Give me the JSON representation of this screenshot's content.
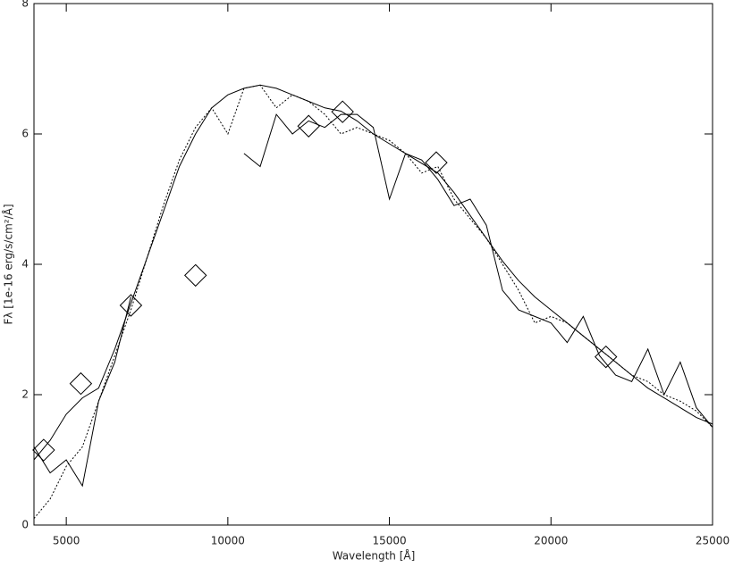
{
  "chart_data": {
    "type": "line",
    "x_label": "Wavelength [Å]",
    "y_label": "Fλ [1e-16 erg/s/cm²/Å]",
    "xlim": [
      4000,
      25000
    ],
    "ylim": [
      0,
      8
    ],
    "xticks": [
      5000,
      10000,
      15000,
      20000,
      25000
    ],
    "yticks": [
      0,
      2,
      4,
      6,
      8
    ],
    "x": [
      4000,
      4500,
      5000,
      5500,
      6000,
      6500,
      7000,
      7500,
      8000,
      8500,
      9000,
      9500,
      10000,
      10500,
      11000,
      11500,
      12000,
      12500,
      13000,
      13500,
      14000,
      14500,
      15000,
      15500,
      16000,
      16500,
      17000,
      17500,
      18000,
      18500,
      19000,
      19500,
      20000,
      20500,
      21000,
      21500,
      22000,
      22500,
      23000,
      23500,
      24000,
      24500,
      25000
    ],
    "series": [
      {
        "color": "#000000",
        "style": "dotted",
        "values": [
          0.1,
          0.4,
          0.9,
          1.2,
          1.9,
          2.6,
          3.3,
          4.1,
          4.9,
          5.6,
          6.1,
          6.4,
          6.0,
          6.7,
          6.75,
          6.4,
          6.6,
          6.5,
          6.3,
          6.0,
          6.1,
          6.0,
          5.9,
          5.7,
          5.4,
          5.5,
          5.0,
          4.7,
          4.4,
          4.0,
          3.6,
          3.1,
          3.2,
          3.1,
          2.9,
          2.7,
          2.5,
          2.3,
          2.2,
          2.0,
          1.9,
          1.75,
          1.5
        ]
      },
      {
        "color": "#000000",
        "style": "solid",
        "values": [
          1.0,
          1.3,
          1.7,
          1.95,
          2.1,
          2.7,
          3.4,
          4.1,
          4.8,
          5.5,
          6.0,
          6.4,
          6.6,
          6.7,
          6.75,
          6.7,
          6.6,
          6.5,
          6.4,
          6.35,
          6.2,
          6.0,
          5.85,
          5.7,
          5.55,
          5.4,
          5.1,
          4.75,
          4.4,
          4.05,
          3.75,
          3.5,
          3.3,
          3.1,
          2.9,
          2.7,
          2.5,
          2.3,
          2.1,
          1.95,
          1.8,
          1.65,
          1.55
        ]
      },
      {
        "color": "#000000",
        "style": "solid",
        "values": [
          1.2,
          0.8,
          1.0,
          0.6,
          1.9,
          2.5,
          3.5,
          null,
          null,
          null,
          null,
          null,
          null,
          5.7,
          5.5,
          6.3,
          6.0,
          6.2,
          6.1,
          6.3,
          6.3,
          6.1,
          5.0,
          5.7,
          5.6,
          5.3,
          4.9,
          5.0,
          4.6,
          3.6,
          3.3,
          3.2,
          3.1,
          2.8,
          3.2,
          2.6,
          2.3,
          2.2,
          2.7,
          2.0,
          2.5,
          1.8,
          1.5
        ]
      }
    ],
    "photometry": {
      "color": "#000000",
      "marker": "diamond",
      "x": [
        4300,
        5450,
        7000,
        9000,
        12500,
        13550,
        16450,
        21700
      ],
      "values": [
        1.15,
        2.17,
        3.37,
        3.83,
        6.12,
        6.34,
        5.56,
        2.58
      ]
    }
  }
}
